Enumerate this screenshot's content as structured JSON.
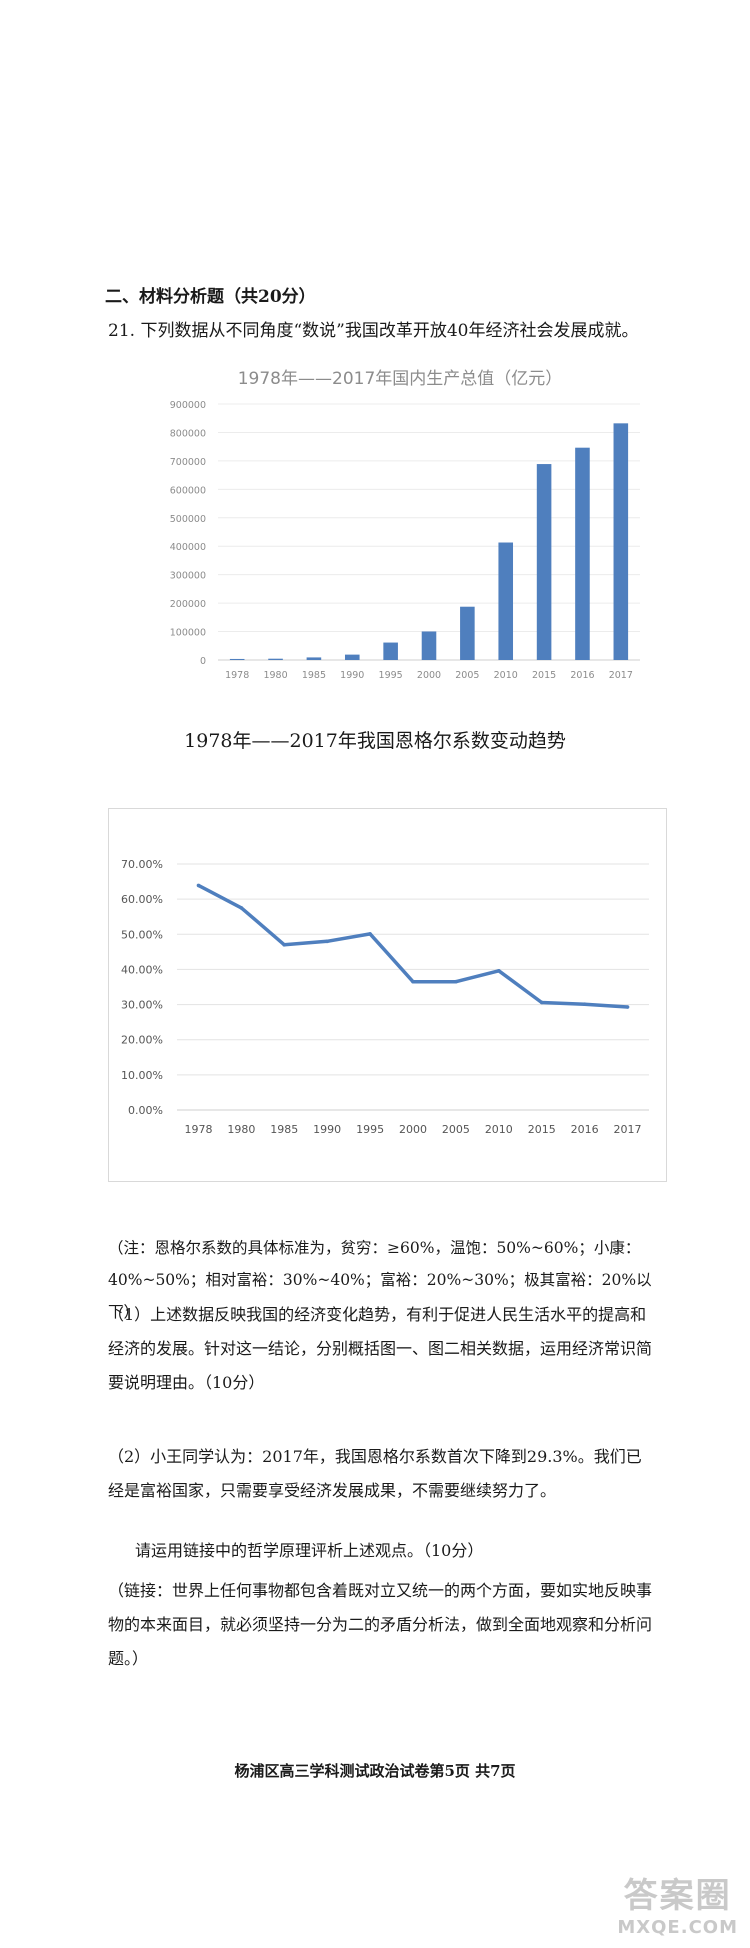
{
  "section": {
    "title": "二、材料分析题（共20分）"
  },
  "question": {
    "text": "21. 下列数据从不同角度“数说”我国改革开放40年经济社会发展成就。"
  },
  "chart_data": [
    {
      "type": "bar",
      "title": "1978年——2017年国内生产总值（亿元）",
      "categories": [
        "1978",
        "1980",
        "1985",
        "1990",
        "1995",
        "2000",
        "2005",
        "2010",
        "2015",
        "2016",
        "2017"
      ],
      "values": [
        3679,
        4588,
        9099,
        18923,
        61340,
        100280,
        187319,
        413030,
        688858,
        746395,
        832036
      ],
      "ylim": [
        0,
        900000
      ],
      "yticks": [
        0,
        100000,
        200000,
        300000,
        400000,
        500000,
        600000,
        700000,
        800000,
        900000
      ],
      "color": "#4f7fbe"
    },
    {
      "type": "line",
      "title": "1978年——2017年我国恩格尔系数变动趋势",
      "categories": [
        "1978",
        "1980",
        "1985",
        "1990",
        "1995",
        "2000",
        "2005",
        "2010",
        "2015",
        "2016",
        "2017"
      ],
      "values": [
        63.9,
        57.5,
        47.0,
        48.0,
        50.1,
        36.5,
        36.5,
        39.6,
        30.6,
        30.1,
        29.3
      ],
      "ylim": [
        0,
        70
      ],
      "yticks": [
        "0.00%",
        "10.00%",
        "20.00%",
        "30.00%",
        "40.00%",
        "50.00%",
        "60.00%",
        "70.00%"
      ],
      "color": "#4f7fbe"
    }
  ],
  "note": {
    "text": "（注：恩格尔系数的具体标准为，贫穷：≥60%，温饱：50%~60%；小康：40%~50%；相对富裕：30%~40%；富裕：20%~30%；极其富裕：20%以下）"
  },
  "sub1": {
    "text": "（1）上述数据反映我国的经济变化趋势，有利于促进人民生活水平的提高和经济的发展。针对这一结论，分别概括图一、图二相关数据，运用经济常识简要说明理由。（10分）"
  },
  "sub2": {
    "text": "（2）小王同学认为：2017年，我国恩格尔系数首次下降到29.3%。我们已经是富裕国家，只需要享受经济发展成果，不需要继续努力了。"
  },
  "sub2b": {
    "text": "请运用链接中的哲学原理评析上述观点。（10分）"
  },
  "link": {
    "text": "（链接：世界上任何事物都包含着既对立又统一的两个方面，要如实地反映事物的本来面目，就必须坚持一分为二的矛盾分析法，做到全面地观察和分析问题。）"
  },
  "footer": {
    "text": "杨浦区高三学科测试政治试卷第5页 共7页"
  },
  "watermark": {
    "main": "答案圈",
    "sub": "MXQE.COM"
  }
}
